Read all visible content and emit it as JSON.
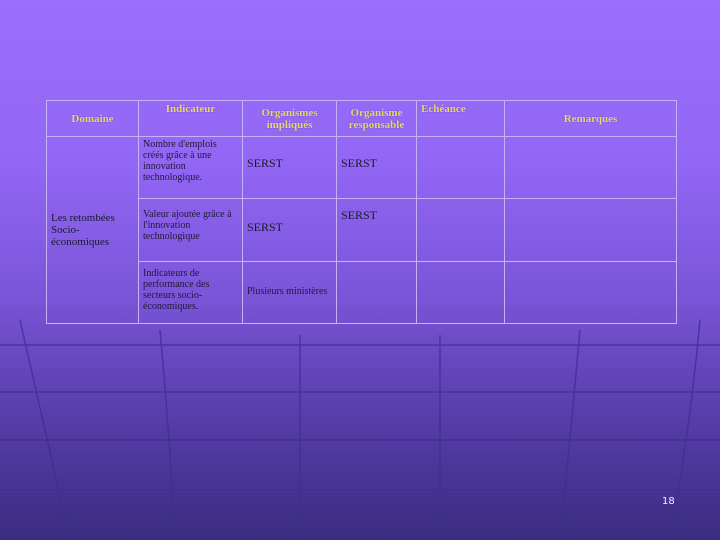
{
  "table": {
    "headers": {
      "domaine": "Domaine",
      "indicateur": "Indicateur",
      "organismes": "Organismes impliqués",
      "organisme_resp": "Organisme responsable",
      "echeance": "Echéance",
      "remarques": "Remarques"
    },
    "domaine": "Les retombées Socio-économiques",
    "rows": [
      {
        "indicateur": "Nombre d'emplois créés grâce à une innovation technologique.",
        "organismes": "SERST",
        "responsable": "SERST",
        "echeance": "",
        "remarques": ""
      },
      {
        "indicateur": "Valeur ajoutée grâce à l'innovation technologique",
        "organismes": "SERST",
        "responsable": "SERST",
        "echeance": "",
        "remarques": ""
      },
      {
        "indicateur": "Indicateurs de performance des secteurs socio-économiques.",
        "organismes": "Plusieurs ministères",
        "responsable": "",
        "echeance": "",
        "remarques": ""
      }
    ]
  },
  "page_number": "18"
}
